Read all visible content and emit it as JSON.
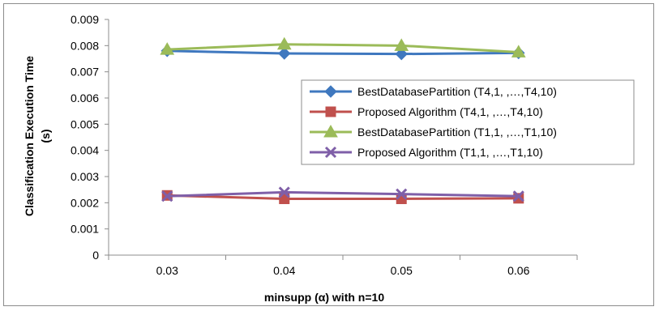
{
  "chart_data": {
    "type": "line",
    "title": "",
    "xlabel": "minsupp (α) with n=10",
    "ylabel_line1": "Classification Execution Time",
    "ylabel_line2": "(s)",
    "categories": [
      "0.03",
      "0.04",
      "0.05",
      "0.06"
    ],
    "ylim": [
      0,
      0.009
    ],
    "yticks": [
      "0",
      "0.001",
      "0.002",
      "0.003",
      "0.004",
      "0.005",
      "0.006",
      "0.007",
      "0.008",
      "0.009"
    ],
    "grid": false,
    "legend_position": "right",
    "series": [
      {
        "name": "BestDatabasePartition (T4,1, ,…,T4,10)",
        "values": [
          0.0078,
          0.0077,
          0.00768,
          0.00772
        ],
        "color": "#3f78bf",
        "marker": "diamond"
      },
      {
        "name": "Proposed Algorithm (T4,1, ,…,T4,10)",
        "values": [
          0.00228,
          0.00215,
          0.00215,
          0.00217
        ],
        "color": "#c0504d",
        "marker": "square"
      },
      {
        "name": "BestDatabasePartition (T1,1, ,…,T1,10)",
        "values": [
          0.00785,
          0.00805,
          0.008,
          0.00775
        ],
        "color": "#9bbb59",
        "marker": "triangle"
      },
      {
        "name": "Proposed Algorithm (T1,1, ,…,T1,10)",
        "values": [
          0.00225,
          0.0024,
          0.00233,
          0.00225
        ],
        "color": "#7f5fa8",
        "marker": "x"
      }
    ]
  }
}
